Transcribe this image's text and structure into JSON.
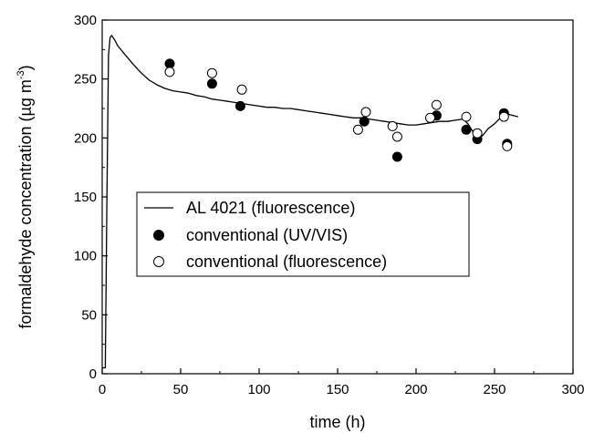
{
  "chart_data": {
    "type": "line",
    "xlabel": "time (h)",
    "ylabel_main": "formaldehyde concentration (µg m",
    "ylabel_sup": "-3",
    "ylabel_close": ")",
    "xlim": [
      0,
      300
    ],
    "ylim": [
      0,
      300
    ],
    "xticks": [
      0,
      50,
      100,
      150,
      200,
      250,
      300
    ],
    "yticks": [
      0,
      50,
      100,
      150,
      200,
      250,
      300
    ],
    "grid": false,
    "legend_position": "center-left",
    "legend": [
      {
        "label": "AL 4021 (fluorescence)",
        "marker": "line"
      },
      {
        "label": "conventional (UV/VIS)",
        "marker": "filled-circle"
      },
      {
        "label": "conventional (fluorescence)",
        "marker": "open-circle"
      }
    ],
    "series": [
      {
        "name": "AL 4021 (fluorescence)",
        "style": "line",
        "x": [
          0,
          2,
          3,
          4,
          5,
          6,
          8,
          10,
          15,
          20,
          25,
          30,
          35,
          40,
          45,
          50,
          55,
          60,
          65,
          70,
          75,
          80,
          85,
          90,
          95,
          100,
          105,
          110,
          115,
          120,
          125,
          130,
          135,
          140,
          145,
          150,
          155,
          160,
          165,
          170,
          175,
          180,
          185,
          190,
          195,
          200,
          205,
          210,
          215,
          220,
          225,
          230,
          233,
          236,
          238,
          240,
          243,
          246,
          250,
          253,
          256,
          259,
          262,
          265
        ],
        "y": [
          5,
          5,
          150,
          270,
          285,
          287,
          283,
          278,
          270,
          262,
          255,
          249,
          245,
          242,
          240,
          239,
          238,
          236,
          235,
          233,
          232,
          231,
          230,
          229,
          228,
          227,
          226,
          226,
          225,
          225,
          224,
          223,
          222,
          221,
          220,
          219,
          218,
          217,
          217,
          216,
          215,
          214,
          213,
          212,
          211,
          211,
          212,
          213,
          214,
          214,
          215,
          216,
          212,
          206,
          200,
          199,
          203,
          208,
          212,
          216,
          221,
          220,
          219,
          218
        ]
      },
      {
        "name": "conventional (UV/VIS)",
        "style": "filled-circle",
        "x": [
          43,
          70,
          88,
          167,
          188,
          213,
          232,
          239,
          256,
          258
        ],
        "y": [
          263,
          246,
          227,
          214,
          184,
          219,
          207,
          199,
          221,
          195
        ]
      },
      {
        "name": "conventional (fluorescence)",
        "style": "open-circle",
        "x": [
          43,
          70,
          89,
          163,
          168,
          185,
          188,
          209,
          213,
          232,
          239,
          256,
          258
        ],
        "y": [
          256,
          255,
          241,
          207,
          222,
          210,
          201,
          217,
          228,
          218,
          204,
          218,
          193
        ]
      }
    ]
  }
}
